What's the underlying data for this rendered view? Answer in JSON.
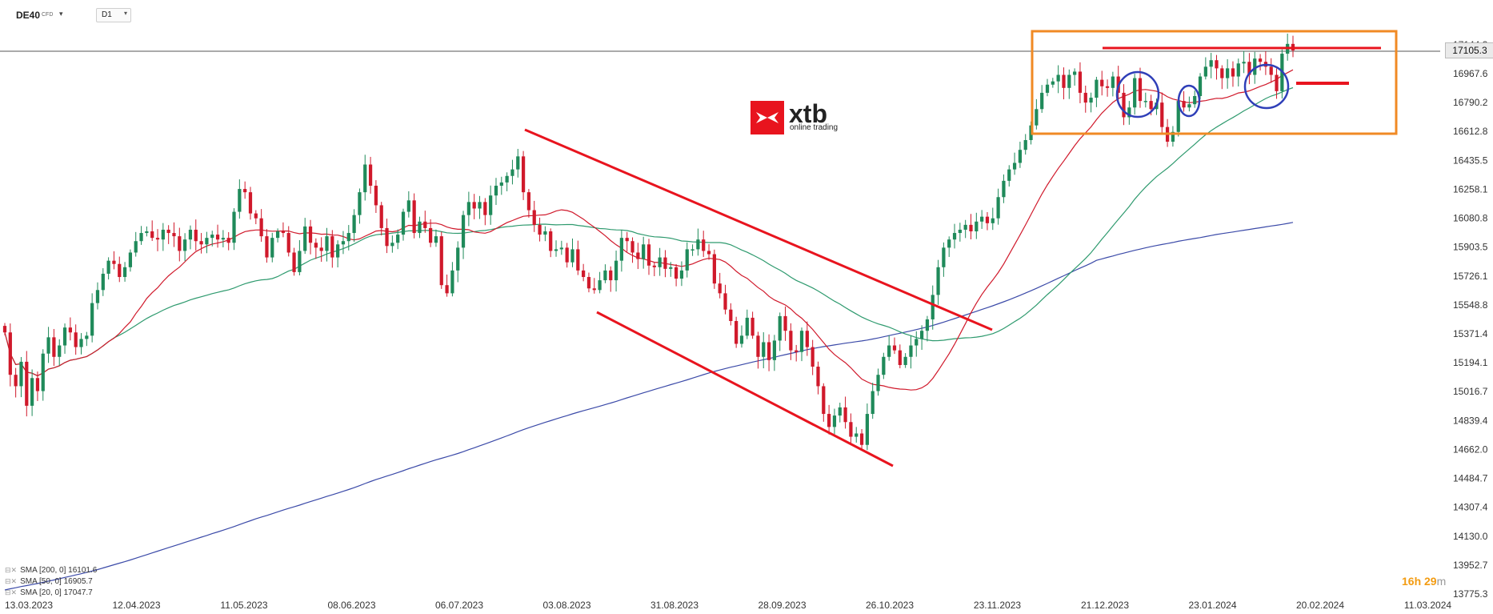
{
  "toolbar": {
    "symbol": "DE40",
    "symbol_type": "CFD",
    "timeframe": "D1"
  },
  "logo": {
    "brand": "xtb",
    "tagline": "online trading"
  },
  "last_price": "17105.3",
  "countdown": {
    "hours": "16h",
    "minutes": "29",
    "unit": "m"
  },
  "legend": [
    {
      "label": "SMA [200, 0] 16101.6"
    },
    {
      "label": "SMA [50, 0] 16905.7"
    },
    {
      "label": "SMA [20, 0] 17047.7"
    }
  ],
  "colors": {
    "up": "#1f8a5a",
    "down": "#d0192b",
    "sma200": "#3b4aa8",
    "sma50": "#2e9a6e",
    "sma20": "#d0192b",
    "annot_red": "#e8141e",
    "annot_orange": "#f08a24",
    "annot_blue": "#2f3fb8"
  },
  "chart_data": {
    "type": "candlestick",
    "title": "",
    "y_ticks": [
      "17144.3",
      "16967.6",
      "16790.2",
      "16612.8",
      "16435.5",
      "16258.1",
      "16080.8",
      "15903.5",
      "15726.1",
      "15548.8",
      "15371.4",
      "15194.1",
      "15016.7",
      "14839.4",
      "14662.0",
      "14484.7",
      "14307.4",
      "14130.0",
      "13952.7",
      "13775.3"
    ],
    "x_ticks": [
      "13.03.2023",
      "12.04.2023",
      "11.05.2023",
      "08.06.2023",
      "06.07.2023",
      "03.08.2023",
      "31.08.2023",
      "28.09.2023",
      "26.10.2023",
      "23.11.2023",
      "21.12.2023",
      "23.01.2024",
      "20.02.2024",
      "11.03.2024"
    ],
    "ylim": [
      13775.3,
      17144.3
    ],
    "current_price": 17105.3,
    "closes": [
      15380,
      15120,
      15050,
      15200,
      14930,
      15100,
      15020,
      15250,
      15350,
      15230,
      15300,
      15410,
      15380,
      15290,
      15340,
      15360,
      15560,
      15640,
      15740,
      15820,
      15800,
      15720,
      15780,
      15870,
      15940,
      15990,
      16000,
      15960,
      15950,
      16010,
      15990,
      15970,
      15880,
      15950,
      16010,
      15940,
      15920,
      15960,
      15980,
      15950,
      15960,
      15930,
      16120,
      16260,
      16240,
      16110,
      16080,
      15970,
      15840,
      15960,
      16000,
      15990,
      15870,
      15750,
      15880,
      16030,
      15930,
      15900,
      15880,
      15970,
      15840,
      15920,
      15940,
      15990,
      16100,
      16240,
      16410,
      16280,
      16160,
      16020,
      15910,
      15930,
      15980,
      16120,
      16190,
      15990,
      16060,
      16020,
      15930,
      15970,
      15670,
      15620,
      15760,
      15900,
      16100,
      16180,
      16140,
      16180,
      16100,
      16220,
      16280,
      16300,
      16340,
      16380,
      16460,
      16240,
      16130,
      16040,
      15980,
      16000,
      15880,
      15890,
      15900,
      15810,
      15890,
      15760,
      15720,
      15650,
      15640,
      15700,
      15760,
      15700,
      15820,
      15960,
      15940,
      15870,
      15830,
      15920,
      15790,
      15780,
      15840,
      15770,
      15780,
      15710,
      15760,
      15890,
      15890,
      15950,
      15880,
      15860,
      15680,
      15620,
      15520,
      15450,
      15310,
      15360,
      15470,
      15360,
      15230,
      15320,
      15210,
      15330,
      15480,
      15390,
      15270,
      15260,
      15390,
      15290,
      15170,
      15050,
      14880,
      14800,
      14870,
      14920,
      14830,
      14740,
      14760,
      14690,
      14880,
      15020,
      15120,
      15230,
      15300,
      15270,
      15180,
      15230,
      15300,
      15340,
      15390,
      15460,
      15610,
      15780,
      15900,
      15950,
      15990,
      16010,
      16040,
      16000,
      16060,
      16090,
      16050,
      16080,
      16210,
      16310,
      16380,
      16420,
      16500,
      16560,
      16650,
      16750,
      16850,
      16900,
      16920,
      16960,
      16880,
      16960,
      16980,
      16850,
      16790,
      16820,
      16930,
      16890,
      16880,
      16950,
      16850,
      16700,
      16760,
      16940,
      16800,
      16800,
      16750,
      16790,
      16640,
      16550,
      16610,
      16800,
      16760,
      16780,
      16830,
      16950,
      17010,
      17050,
      17000,
      16940,
      17000,
      16950,
      17030,
      17040,
      16960,
      17060,
      17040,
      17010,
      16960,
      16860,
      17090,
      17150,
      17110
    ],
    "sma20_last": 17047.7,
    "sma50_last": 16905.7,
    "sma200_last": 16101.6
  }
}
